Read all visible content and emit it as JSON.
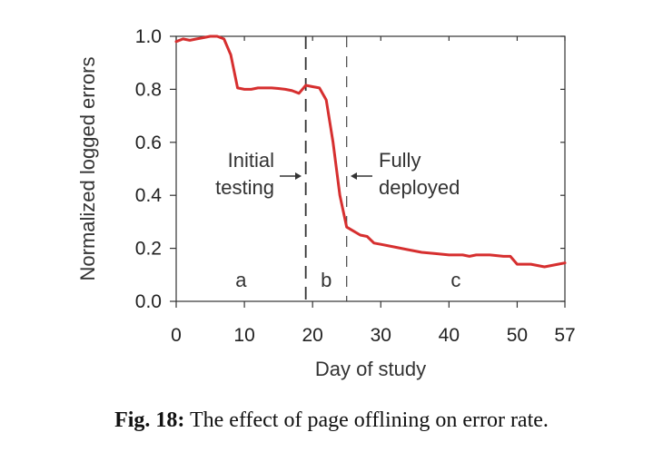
{
  "chart_data": {
    "type": "line",
    "xlabel": "Day of study",
    "ylabel": "Normalized logged errors",
    "xlim": [
      0,
      57
    ],
    "ylim": [
      0,
      1.0
    ],
    "xticks": [
      0,
      10,
      20,
      30,
      40,
      50,
      57
    ],
    "xtick_labels": [
      "0",
      "10",
      "20",
      "30",
      "40",
      "50",
      "57"
    ],
    "yticks": [
      0,
      0.2,
      0.4,
      0.6,
      0.8,
      1.0
    ],
    "ytick_labels": [
      "0.0",
      "0.2",
      "0.4",
      "0.6",
      "0.8",
      "1.0"
    ],
    "series": [
      {
        "color": "#d62f2f",
        "x": [
          0,
          1,
          2,
          3,
          4,
          5,
          6,
          7,
          8,
          9,
          10,
          11,
          12,
          13,
          14,
          15,
          16,
          17,
          18,
          19,
          20,
          21,
          22,
          23,
          24,
          25,
          26,
          27,
          28,
          29,
          30,
          32,
          34,
          36,
          38,
          40,
          42,
          43,
          44,
          46,
          48,
          49,
          50,
          52,
          54,
          56,
          57
        ],
        "y": [
          0.98,
          0.99,
          0.985,
          0.99,
          0.995,
          1.0,
          1.0,
          0.99,
          0.93,
          0.805,
          0.8,
          0.8,
          0.805,
          0.805,
          0.805,
          0.803,
          0.8,
          0.795,
          0.785,
          0.815,
          0.81,
          0.805,
          0.76,
          0.6,
          0.4,
          0.28,
          0.265,
          0.25,
          0.245,
          0.22,
          0.215,
          0.205,
          0.195,
          0.185,
          0.18,
          0.175,
          0.175,
          0.17,
          0.175,
          0.175,
          0.17,
          0.17,
          0.14,
          0.14,
          0.13,
          0.14,
          0.145
        ]
      }
    ],
    "vlines": [
      {
        "x": 19,
        "style": "dashed-long"
      },
      {
        "x": 25,
        "style": "dashed-short"
      }
    ],
    "annotations": {
      "initial": [
        "Initial",
        "testing"
      ],
      "fully": [
        "Fully",
        "deployed"
      ],
      "phases": [
        {
          "label": "a",
          "x": 9.5
        },
        {
          "label": "b",
          "x": 22
        },
        {
          "label": "c",
          "x": 41
        }
      ]
    }
  },
  "caption": {
    "prefix": "Fig. 18:",
    "text": " The effect of page offlining on error rate."
  }
}
